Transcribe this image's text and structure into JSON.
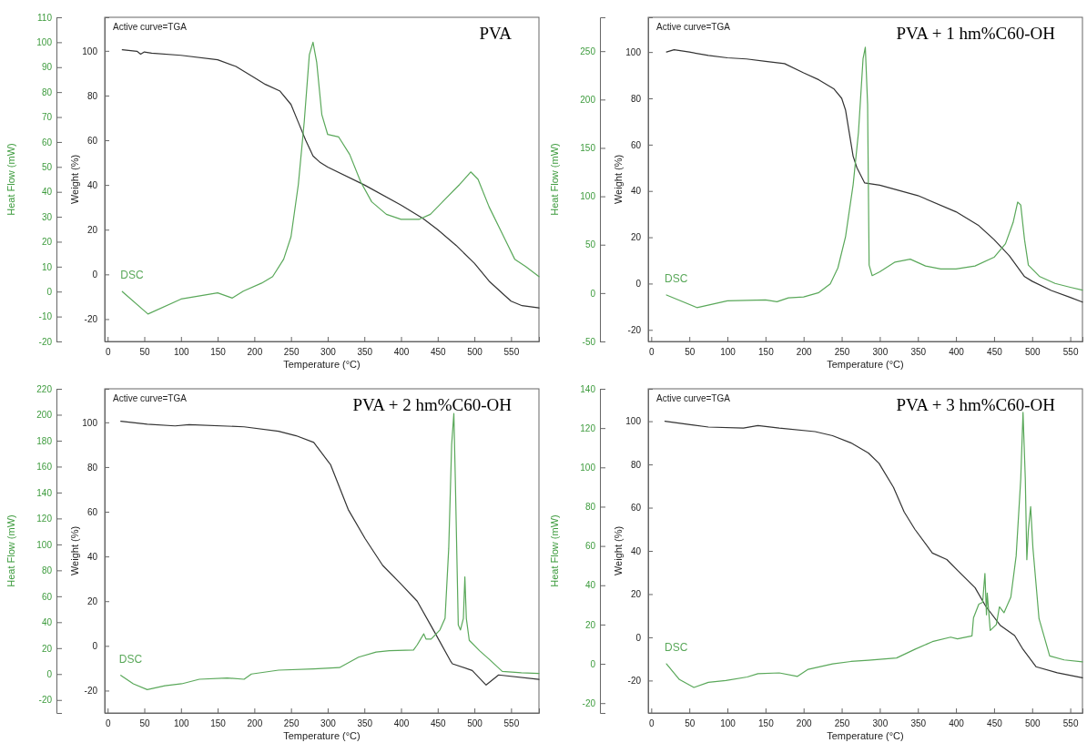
{
  "chart_data": [
    {
      "type": "line",
      "title": "PVA",
      "xlabel": "Temperature (°C)",
      "ylabel": "Weight (%)",
      "y2label": "Heat Flow (mW)",
      "annotations": [
        "Active curve=TGA"
      ],
      "xlim": [
        -4,
        588
      ],
      "xticks": [
        0,
        50,
        100,
        150,
        200,
        250,
        300,
        350,
        400,
        450,
        500,
        550
      ],
      "ylim": [
        -30,
        115
      ],
      "yticks": [
        -20,
        0,
        20,
        40,
        60,
        80,
        100
      ],
      "y2lim": [
        -20,
        110
      ],
      "y2ticks": [
        -20,
        -10,
        0,
        10,
        20,
        30,
        40,
        50,
        60,
        70,
        80,
        90,
        100,
        110
      ],
      "series": [
        {
          "color": "#333333",
          "x": [
            20,
            40,
            45,
            50,
            60,
            100,
            150,
            175,
            200,
            215,
            235,
            250,
            260,
            270,
            280,
            290,
            300,
            350,
            400,
            430,
            450,
            475,
            500,
            520,
            540,
            550,
            565,
            588
          ],
          "values": [
            100.5,
            99.8,
            98.5,
            99.5,
            99,
            98,
            96,
            93,
            88,
            85,
            82,
            76,
            68,
            60,
            53,
            50,
            48,
            40,
            31,
            25,
            20,
            13,
            5,
            -3,
            -9,
            -12,
            -14,
            -15
          ]
        },
        {
          "name": "DSC",
          "axis": "y2",
          "color": "#5aa85a",
          "x": [
            20,
            55,
            100,
            150,
            170,
            185,
            210,
            225,
            240,
            250,
            260,
            268,
            275,
            280,
            285,
            292,
            300,
            315,
            330,
            345,
            360,
            380,
            400,
            425,
            440,
            460,
            480,
            495,
            505,
            520,
            540,
            555,
            570,
            588
          ],
          "values": [
            0,
            -9,
            -3,
            -0.5,
            -2.6,
            0.2,
            3.4,
            6,
            13,
            22,
            43,
            68,
            95,
            100,
            92,
            71,
            63,
            62,
            55,
            44,
            36,
            31,
            29,
            29,
            31,
            37,
            43,
            48,
            45,
            34,
            22,
            13,
            10,
            6
          ]
        }
      ]
    },
    {
      "type": "line",
      "title": "PVA + 1 hm%C60-OH",
      "xlabel": "Temperature (°C)",
      "ylabel": "Weight (%)",
      "y2label": "Heat Flow (mW)",
      "annotations": [
        "Active curve=TGA"
      ],
      "xlim": [
        -4,
        566
      ],
      "xticks": [
        0,
        50,
        100,
        150,
        200,
        250,
        300,
        350,
        400,
        450,
        500,
        550
      ],
      "ylim": [
        -25,
        115
      ],
      "yticks": [
        -20,
        0,
        20,
        40,
        60,
        80,
        100
      ],
      "y2lim": [
        -50,
        285
      ],
      "y2ticks": [
        -50,
        0,
        50,
        100,
        150,
        200,
        250
      ],
      "series": [
        {
          "color": "#333333",
          "x": [
            20,
            30,
            50,
            75,
            100,
            125,
            150,
            175,
            200,
            220,
            240,
            250,
            255,
            260,
            265,
            270,
            280,
            300,
            350,
            400,
            430,
            450,
            470,
            490,
            500,
            525,
            550,
            566
          ],
          "values": [
            100,
            101,
            100,
            98.5,
            97.5,
            97,
            96,
            95,
            91,
            88,
            84,
            80,
            75,
            65,
            55,
            50,
            43.5,
            42.5,
            38,
            31,
            25,
            19,
            12,
            3,
            1,
            -3,
            -6,
            -8
          ]
        },
        {
          "name": "DSC",
          "axis": "y2",
          "color": "#5aa85a",
          "x": [
            20,
            60,
            100,
            150,
            165,
            180,
            200,
            220,
            235,
            245,
            255,
            265,
            272,
            278,
            281,
            284,
            286,
            290,
            300,
            320,
            340,
            360,
            380,
            400,
            425,
            450,
            465,
            475,
            481,
            485,
            490,
            495,
            510,
            530,
            550,
            566
          ],
          "values": [
            -2,
            -15,
            -8,
            -7,
            -9,
            -5,
            -4,
            0.5,
            9.5,
            26,
            58,
            112,
            166,
            242,
            254,
            195,
            29,
            18,
            22,
            32,
            35,
            28,
            25,
            25,
            28,
            37,
            51,
            73,
            94,
            91,
            55,
            29,
            17,
            10,
            6,
            3
          ]
        }
      ]
    },
    {
      "type": "line",
      "title": "PVA + 2 hm%C60-OH",
      "xlabel": "Temperature (°C)",
      "ylabel": "Weight (%)",
      "y2label": "Heat Flow (mW)",
      "annotations": [
        "Active curve=TGA"
      ],
      "xlim": [
        -4,
        588
      ],
      "xticks": [
        0,
        50,
        100,
        150,
        200,
        250,
        300,
        350,
        400,
        450,
        500,
        550
      ],
      "ylim": [
        -30,
        115
      ],
      "yticks": [
        -20,
        0,
        20,
        40,
        60,
        80,
        100
      ],
      "y2lim": [
        -30,
        220
      ],
      "y2ticks": [
        -20,
        0,
        20,
        40,
        60,
        80,
        100,
        120,
        140,
        160,
        180,
        200,
        220
      ],
      "series": [
        {
          "color": "#333333",
          "x": [
            18,
            54,
            92,
            111,
            186,
            233,
            257,
            281,
            304,
            328,
            351,
            375,
            399,
            422,
            446,
            467,
            470,
            497,
            516,
            533,
            588
          ],
          "values": [
            100.5,
            99.2,
            98.4,
            99,
            98,
            96,
            94,
            91,
            81,
            61,
            48,
            36,
            28,
            20,
            6,
            -6.5,
            -8,
            -11,
            -17.5,
            -13,
            -15
          ]
        },
        {
          "name": "DSC",
          "axis": "y2",
          "color": "#5aa85a",
          "x": [
            18,
            35,
            54,
            78,
            101,
            125,
            163,
            186,
            196,
            233,
            281,
            316,
            342,
            366,
            384,
            417,
            422,
            431,
            434,
            441,
            453,
            460,
            465,
            469,
            472,
            474,
            478,
            481,
            485,
            487,
            489,
            493,
            507,
            521,
            538,
            564,
            588
          ],
          "values": [
            -1,
            -7.5,
            -12,
            -9,
            -7.5,
            -4,
            -3,
            -4,
            0,
            3,
            4,
            5,
            13,
            17,
            18,
            18.5,
            22.5,
            31,
            27,
            27,
            34,
            43,
            97,
            177,
            201,
            150,
            38,
            34,
            43,
            75,
            43,
            26,
            18,
            11,
            2,
            1,
            0.5
          ]
        }
      ]
    },
    {
      "type": "line",
      "title": "PVA + 3 hm%C60-OH",
      "xlabel": "Temperature (°C)",
      "ylabel": "Weight (%)",
      "y2label": "Heat Flow (mW)",
      "annotations": [
        "Active curve=TGA"
      ],
      "xlim": [
        -4,
        566
      ],
      "xticks": [
        0,
        50,
        100,
        150,
        200,
        250,
        300,
        350,
        400,
        450,
        500,
        550
      ],
      "ylim": [
        -35,
        115
      ],
      "yticks": [
        -20,
        0,
        20,
        40,
        60,
        80,
        100
      ],
      "y2lim": [
        -25,
        140
      ],
      "y2ticks": [
        -20,
        0,
        20,
        40,
        60,
        80,
        100,
        120,
        140
      ],
      "series": [
        {
          "color": "#333333",
          "x": [
            18,
            51,
            75,
            121,
            140,
            168,
            215,
            238,
            262,
            285,
            299,
            318,
            332,
            346,
            369,
            388,
            402,
            425,
            439,
            458,
            477,
            488,
            505,
            533,
            566
          ],
          "values": [
            100,
            98.4,
            97.3,
            96.8,
            98,
            96.8,
            95.2,
            93.3,
            90,
            85.3,
            80.5,
            69.4,
            58,
            50,
            39,
            36,
            31,
            23,
            14.4,
            5.6,
            0.8,
            -5.6,
            -13.6,
            -16.4,
            -18.7
          ]
        },
        {
          "name": "DSC",
          "axis": "y2",
          "color": "#5aa85a",
          "x": [
            20,
            37,
            56,
            75,
            98,
            126,
            140,
            168,
            192,
            206,
            238,
            262,
            285,
            322,
            346,
            369,
            393,
            402,
            421,
            423,
            430,
            435,
            438,
            440,
            441,
            445,
            453,
            457,
            463,
            472,
            479,
            485,
            488,
            491,
            493,
            495,
            498,
            501,
            509,
            523,
            542,
            566
          ],
          "values": [
            0,
            -8,
            -12,
            -9.4,
            -8.5,
            -6.7,
            -5,
            -4.6,
            -6.4,
            -2.8,
            0,
            1.2,
            1.8,
            3,
            7.4,
            11.3,
            13.6,
            12.7,
            14.2,
            23.4,
            30.4,
            31.3,
            46,
            25,
            36,
            17,
            20,
            29,
            26,
            34,
            55,
            94,
            128,
            94,
            53,
            68,
            80,
            59,
            23,
            4,
            2,
            1
          ]
        }
      ]
    }
  ]
}
